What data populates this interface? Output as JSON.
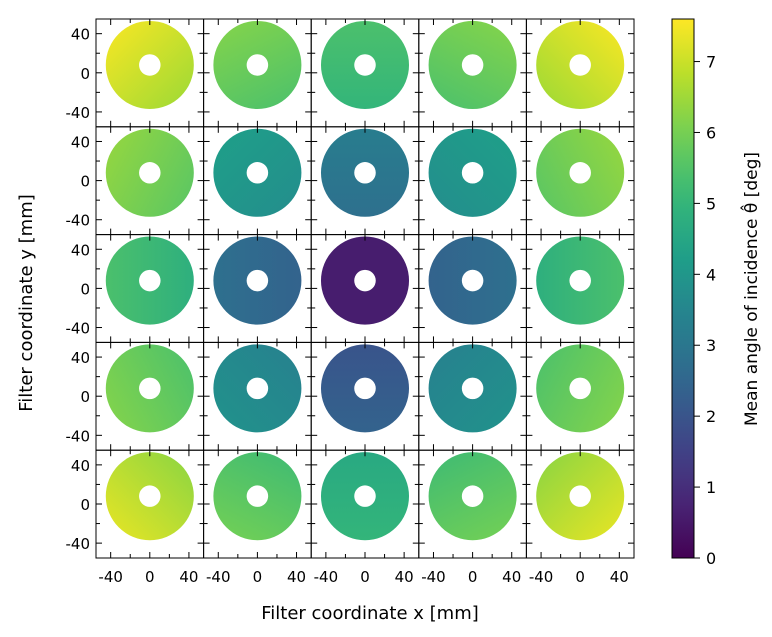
{
  "chart_data": {
    "type": "heatmap",
    "xlabel": "Filter coordinate  x [mm]",
    "ylabel": "Filter coordinate  y [mm]",
    "colorbar_label": "Mean angle of incidence  θ̂ [deg]",
    "colormap": "viridis",
    "colorbar_range": [
      0,
      7.6
    ],
    "colorbar_ticks": [
      "0",
      "1",
      "2",
      "3",
      "4",
      "5",
      "6",
      "7"
    ],
    "x_tick_labels": [
      "-40",
      "0",
      "40"
    ],
    "y_tick_labels": [
      "40",
      "0",
      "-40"
    ],
    "panel_axis_range_mm": [
      -55,
      55
    ],
    "annulus_outer_radius_mm": 45,
    "annulus_inner_radius_mm": 11,
    "annulus_center_offset_mm": [
      0,
      8
    ],
    "grid_rows": 5,
    "grid_cols": 5,
    "mean_angle_deg": [
      [
        7.0,
        5.8,
        5.2,
        5.8,
        7.0
      ],
      [
        6.0,
        4.0,
        3.0,
        4.0,
        6.0
      ],
      [
        5.1,
        2.6,
        0.4,
        2.6,
        5.1
      ],
      [
        5.8,
        3.6,
        2.2,
        3.6,
        5.8
      ],
      [
        6.8,
        5.6,
        4.8,
        5.6,
        6.8
      ]
    ],
    "gradient_strength_deg": [
      [
        0.4,
        0.3,
        0.2,
        0.3,
        0.4
      ],
      [
        0.3,
        0.2,
        0.2,
        0.2,
        0.3
      ],
      [
        0.3,
        0.2,
        0.2,
        0.2,
        0.3
      ],
      [
        0.3,
        0.2,
        0.2,
        0.2,
        0.3
      ],
      [
        0.4,
        0.3,
        0.2,
        0.3,
        0.4
      ]
    ]
  }
}
